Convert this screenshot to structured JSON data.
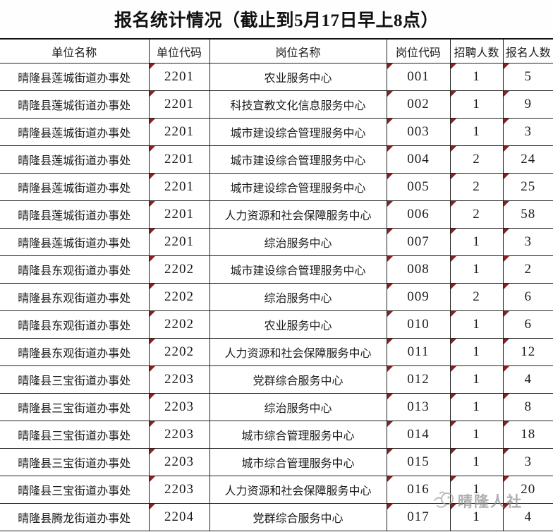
{
  "title": "报名统计情况（截止到5月17日早上8点）",
  "marker_color": "#8b2121",
  "table": {
    "columns": [
      {
        "key": "unit_name",
        "label": "单位名称",
        "marker": false,
        "num": false
      },
      {
        "key": "unit_code",
        "label": "单位代码",
        "marker": true,
        "num": true
      },
      {
        "key": "post_name",
        "label": "岗位名称",
        "marker": false,
        "num": false
      },
      {
        "key": "post_code",
        "label": "岗位代码",
        "marker": true,
        "num": true
      },
      {
        "key": "recruit_count",
        "label": "招聘人数",
        "marker": true,
        "num": true
      },
      {
        "key": "applicant_count",
        "label": "报名人数",
        "marker": true,
        "num": true
      }
    ],
    "rows": [
      {
        "unit_name": "晴隆县莲城街道办事处",
        "unit_code": "2201",
        "post_name": "农业服务中心",
        "post_code": "001",
        "recruit_count": "1",
        "applicant_count": "5"
      },
      {
        "unit_name": "晴隆县莲城街道办事处",
        "unit_code": "2201",
        "post_name": "科技宣教文化信息服务中心",
        "post_code": "002",
        "recruit_count": "1",
        "applicant_count": "9"
      },
      {
        "unit_name": "晴隆县莲城街道办事处",
        "unit_code": "2201",
        "post_name": "城市建设综合管理服务中心",
        "post_code": "003",
        "recruit_count": "1",
        "applicant_count": "3"
      },
      {
        "unit_name": "晴隆县莲城街道办事处",
        "unit_code": "2201",
        "post_name": "城市建设综合管理服务中心",
        "post_code": "004",
        "recruit_count": "2",
        "applicant_count": "24"
      },
      {
        "unit_name": "晴隆县莲城街道办事处",
        "unit_code": "2201",
        "post_name": "城市建设综合管理服务中心",
        "post_code": "005",
        "recruit_count": "2",
        "applicant_count": "25"
      },
      {
        "unit_name": "晴隆县莲城街道办事处",
        "unit_code": "2201",
        "post_name": "人力资源和社会保障服务中心",
        "post_code": "006",
        "recruit_count": "2",
        "applicant_count": "58"
      },
      {
        "unit_name": "晴隆县莲城街道办事处",
        "unit_code": "2201",
        "post_name": "综治服务中心",
        "post_code": "007",
        "recruit_count": "1",
        "applicant_count": "3"
      },
      {
        "unit_name": "晴隆县东观街道办事处",
        "unit_code": "2202",
        "post_name": "城市建设综合管理服务中心",
        "post_code": "008",
        "recruit_count": "1",
        "applicant_count": "2"
      },
      {
        "unit_name": "晴隆县东观街道办事处",
        "unit_code": "2202",
        "post_name": "综治服务中心",
        "post_code": "009",
        "recruit_count": "2",
        "applicant_count": "6"
      },
      {
        "unit_name": "晴隆县东观街道办事处",
        "unit_code": "2202",
        "post_name": "农业服务中心",
        "post_code": "010",
        "recruit_count": "1",
        "applicant_count": "6"
      },
      {
        "unit_name": "晴隆县东观街道办事处",
        "unit_code": "2202",
        "post_name": "人力资源和社会保障服务中心",
        "post_code": "011",
        "recruit_count": "1",
        "applicant_count": "12"
      },
      {
        "unit_name": "晴隆县三宝街道办事处",
        "unit_code": "2203",
        "post_name": "党群综合服务中心",
        "post_code": "012",
        "recruit_count": "1",
        "applicant_count": "4"
      },
      {
        "unit_name": "晴隆县三宝街道办事处",
        "unit_code": "2203",
        "post_name": "综治服务中心",
        "post_code": "013",
        "recruit_count": "1",
        "applicant_count": "8"
      },
      {
        "unit_name": "晴隆县三宝街道办事处",
        "unit_code": "2203",
        "post_name": "城市综合管理服务中心",
        "post_code": "014",
        "recruit_count": "1",
        "applicant_count": "18"
      },
      {
        "unit_name": "晴隆县三宝街道办事处",
        "unit_code": "2203",
        "post_name": "城市综合管理服务中心",
        "post_code": "015",
        "recruit_count": "1",
        "applicant_count": "3"
      },
      {
        "unit_name": "晴隆县三宝街道办事处",
        "unit_code": "2203",
        "post_name": "人力资源和社会保障服务中心",
        "post_code": "016",
        "recruit_count": "1",
        "applicant_count": "20"
      },
      {
        "unit_name": "晴隆县腾龙街道办事处",
        "unit_code": "2204",
        "post_name": "党群综合服务中心",
        "post_code": "017",
        "recruit_count": "1",
        "applicant_count": "4"
      }
    ]
  },
  "watermark": {
    "text": "晴隆人社"
  }
}
